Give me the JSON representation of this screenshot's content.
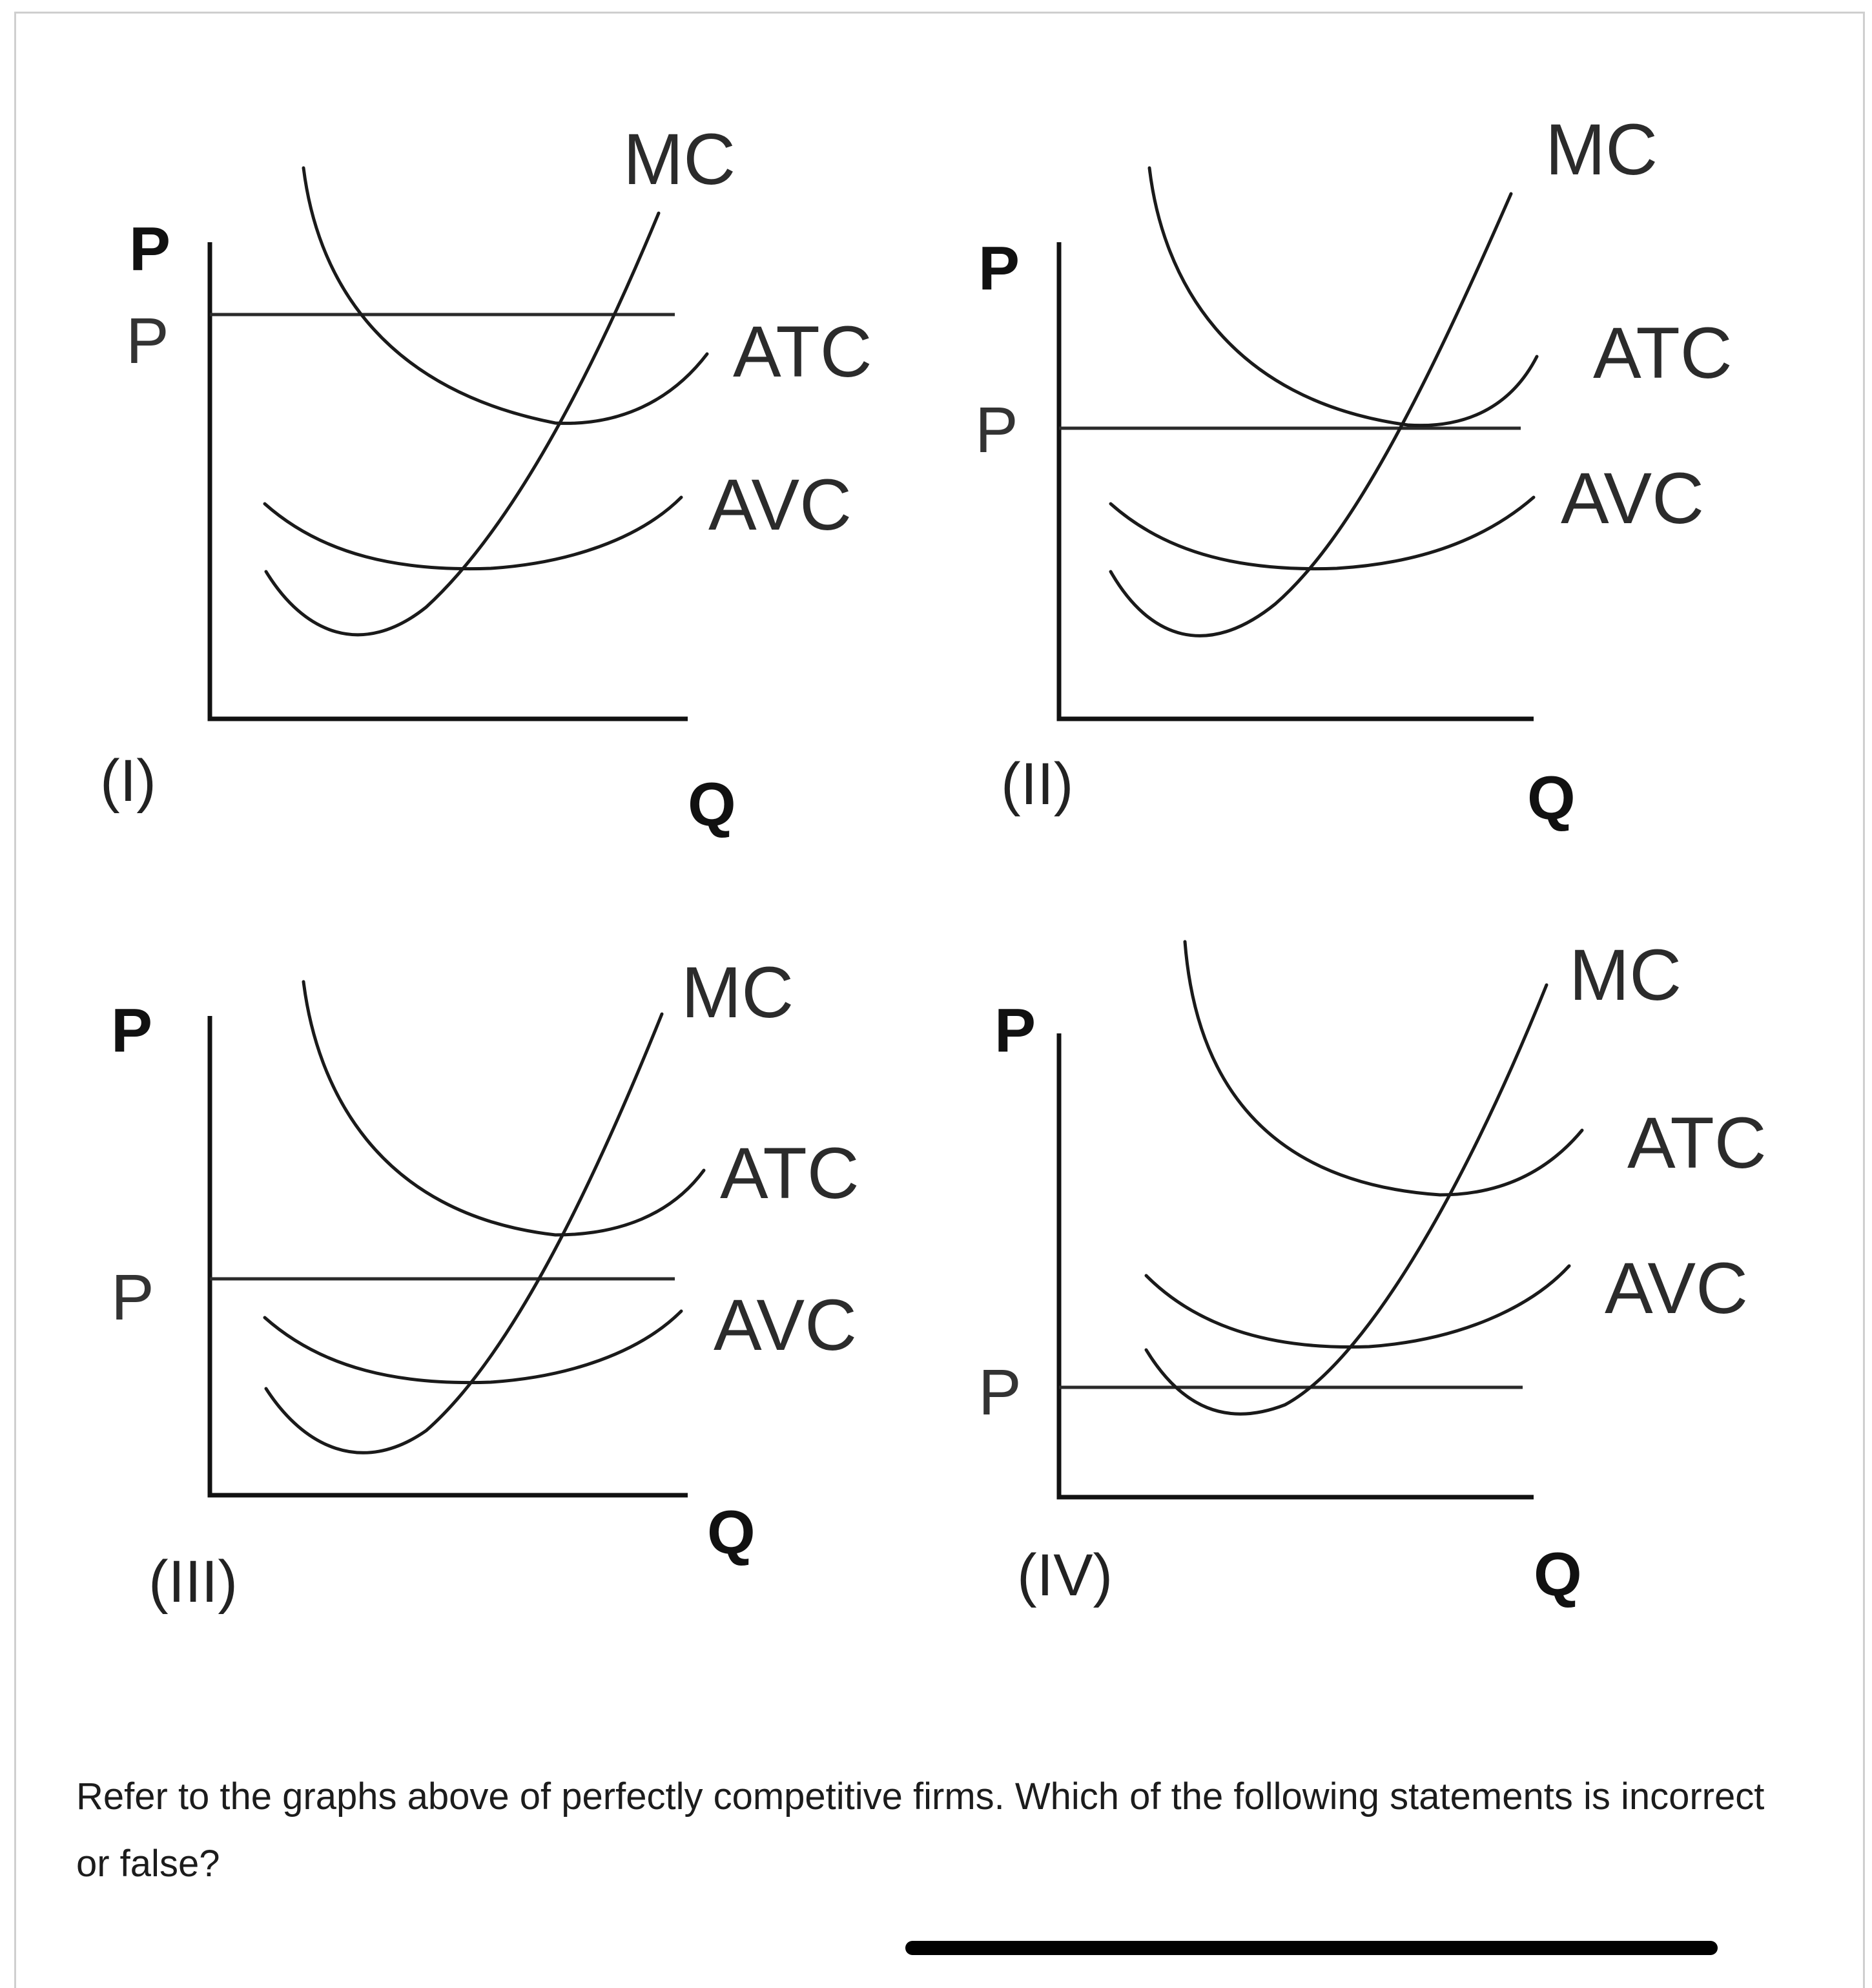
{
  "figure": {
    "panels": [
      {
        "id": "I",
        "label": "(I)",
        "y_axis": "P",
        "x_axis": "Q",
        "price_label": "P",
        "mc": "MC",
        "atc": "ATC",
        "avc": "AVC"
      },
      {
        "id": "II",
        "label": "(II)",
        "y_axis": "P",
        "x_axis": "Q",
        "price_label": "P",
        "mc": "MC",
        "atc": "ATC",
        "avc": "AVC"
      },
      {
        "id": "III",
        "label": "(III)",
        "y_axis": "P",
        "x_axis": "Q",
        "price_label": "P",
        "mc": "MC",
        "atc": "ATC",
        "avc": "AVC"
      },
      {
        "id": "IV",
        "label": "(IV)",
        "y_axis": "P",
        "x_axis": "Q",
        "price_label": "P",
        "mc": "MC",
        "atc": "ATC",
        "avc": "AVC"
      }
    ]
  },
  "question": {
    "text": "Refer to the graphs above of perfectly competitive firms. Which of the following statements is incorrect or false?"
  }
}
